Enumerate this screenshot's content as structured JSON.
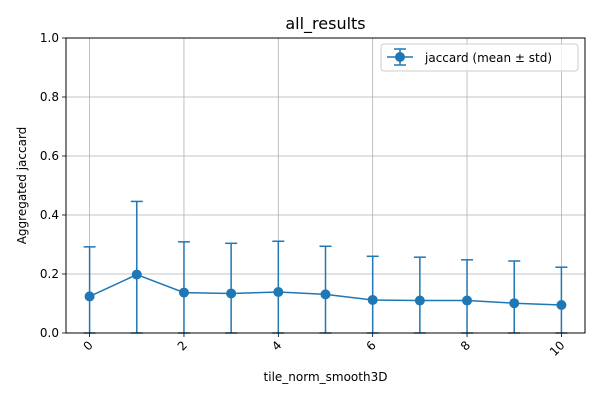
{
  "colors": {
    "series": "#1f77b4",
    "grid": "#b0b0b0",
    "axes": "#000000"
  },
  "chart_data": {
    "type": "line",
    "title": "all_results",
    "xlabel": "tile_norm_smooth3D",
    "ylabel": "Aggregated jaccard",
    "xlim": [
      -0.5,
      10.5
    ],
    "ylim": [
      0,
      1
    ],
    "xticks": [
      0,
      2,
      4,
      6,
      8,
      10
    ],
    "yticks": [
      0.0,
      0.2,
      0.4,
      0.6,
      0.8,
      1.0
    ],
    "ytick_labels": [
      "0.0",
      "0.2",
      "0.4",
      "0.6",
      "0.8",
      "1.0"
    ],
    "grid": true,
    "legend_position": "top-right",
    "series": [
      {
        "name": "jaccard (mean ± std)",
        "x": [
          0,
          1,
          2,
          3,
          4,
          5,
          6,
          7,
          8,
          9,
          10
        ],
        "y": [
          0.124,
          0.198,
          0.137,
          0.134,
          0.139,
          0.131,
          0.112,
          0.11,
          0.11,
          0.101,
          0.095
        ],
        "err": [
          0.168,
          0.248,
          0.172,
          0.17,
          0.172,
          0.163,
          0.148,
          0.147,
          0.138,
          0.143,
          0.128
        ]
      }
    ]
  }
}
